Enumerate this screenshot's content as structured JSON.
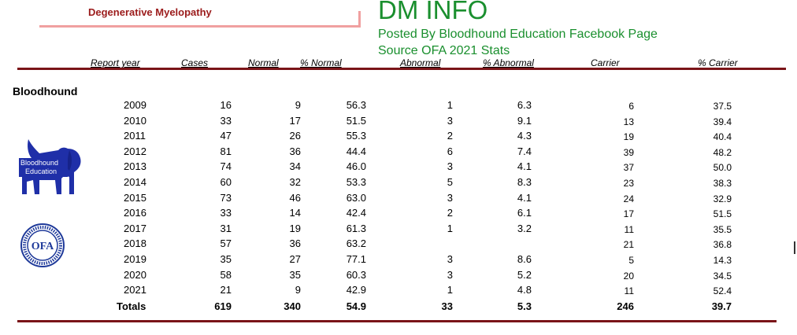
{
  "header": {
    "subtitle": "Degenerative Myelopathy",
    "title": "DM INFO",
    "posted": "Posted By Bloodhound Education Facebook Page",
    "source": "Source OFA 2021 Stats"
  },
  "columns": [
    "Report year",
    "Cases",
    "Normal",
    "% Normal",
    "Abnormal",
    "% Abnormal",
    "Carrier",
    "% Carrier"
  ],
  "section_label": "Bloodhound",
  "logos": {
    "bloodhound_education": {
      "line1": "Bloodhound",
      "line2": "Education",
      "color": "#1f2fa8"
    },
    "ofa": {
      "text": "OFA",
      "ring_text": "ORTHOPEDIC FOUNDATION FOR ANIMALS",
      "since": "SINCE 1966",
      "color": "#1f3a9a"
    }
  },
  "rows": [
    {
      "year": "2009",
      "cases": "16",
      "normal": "9",
      "pct_normal": "56.3",
      "abnormal": "1",
      "pct_abnormal": "6.3",
      "carrier": "6",
      "pct_carrier": "37.5"
    },
    {
      "year": "2010",
      "cases": "33",
      "normal": "17",
      "pct_normal": "51.5",
      "abnormal": "3",
      "pct_abnormal": "9.1",
      "carrier": "13",
      "pct_carrier": "39.4"
    },
    {
      "year": "2011",
      "cases": "47",
      "normal": "26",
      "pct_normal": "55.3",
      "abnormal": "2",
      "pct_abnormal": "4.3",
      "carrier": "19",
      "pct_carrier": "40.4"
    },
    {
      "year": "2012",
      "cases": "81",
      "normal": "36",
      "pct_normal": "44.4",
      "abnormal": "6",
      "pct_abnormal": "7.4",
      "carrier": "39",
      "pct_carrier": "48.2"
    },
    {
      "year": "2013",
      "cases": "74",
      "normal": "34",
      "pct_normal": "46.0",
      "abnormal": "3",
      "pct_abnormal": "4.1",
      "carrier": "37",
      "pct_carrier": "50.0"
    },
    {
      "year": "2014",
      "cases": "60",
      "normal": "32",
      "pct_normal": "53.3",
      "abnormal": "5",
      "pct_abnormal": "8.3",
      "carrier": "23",
      "pct_carrier": "38.3"
    },
    {
      "year": "2015",
      "cases": "73",
      "normal": "46",
      "pct_normal": "63.0",
      "abnormal": "3",
      "pct_abnormal": "4.1",
      "carrier": "24",
      "pct_carrier": "32.9"
    },
    {
      "year": "2016",
      "cases": "33",
      "normal": "14",
      "pct_normal": "42.4",
      "abnormal": "2",
      "pct_abnormal": "6.1",
      "carrier": "17",
      "pct_carrier": "51.5"
    },
    {
      "year": "2017",
      "cases": "31",
      "normal": "19",
      "pct_normal": "61.3",
      "abnormal": "1",
      "pct_abnormal": "3.2",
      "carrier": "11",
      "pct_carrier": "35.5"
    },
    {
      "year": "2018",
      "cases": "57",
      "normal": "36",
      "pct_normal": "63.2",
      "abnormal": "",
      "pct_abnormal": "",
      "carrier": "21",
      "pct_carrier": "36.8"
    },
    {
      "year": "2019",
      "cases": "35",
      "normal": "27",
      "pct_normal": "77.1",
      "abnormal": "3",
      "pct_abnormal": "8.6",
      "carrier": "5",
      "pct_carrier": "14.3"
    },
    {
      "year": "2020",
      "cases": "58",
      "normal": "35",
      "pct_normal": "60.3",
      "abnormal": "3",
      "pct_abnormal": "5.2",
      "carrier": "20",
      "pct_carrier": "34.5"
    },
    {
      "year": "2021",
      "cases": "21",
      "normal": "9",
      "pct_normal": "42.9",
      "abnormal": "1",
      "pct_abnormal": "4.8",
      "carrier": "11",
      "pct_carrier": "52.4"
    }
  ],
  "totals": {
    "label": "Totals",
    "cases": "619",
    "normal": "340",
    "pct_normal": "54.9",
    "abnormal": "33",
    "pct_abnormal": "5.3",
    "carrier": "246",
    "pct_carrier": "39.7"
  }
}
